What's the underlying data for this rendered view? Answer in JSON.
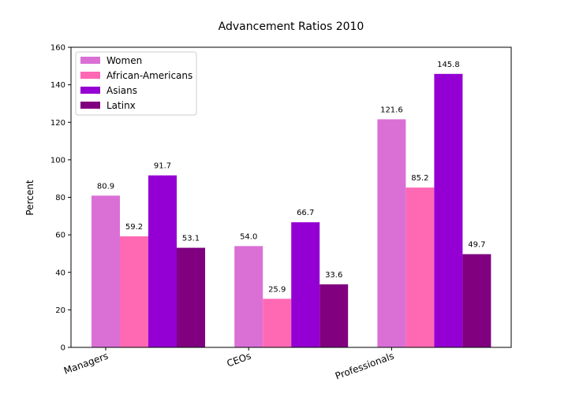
{
  "chart_data": {
    "type": "bar",
    "title": "Advancement Ratios 2010",
    "xlabel": "",
    "ylabel": "Percent",
    "categories": [
      "Managers",
      "CEOs",
      "Professionals"
    ],
    "series": [
      {
        "name": "Women",
        "color": "#da70d6",
        "values": [
          80.9,
          54.0,
          121.6
        ]
      },
      {
        "name": "African-Americans",
        "color": "#ff69b4",
        "values": [
          59.2,
          25.9,
          85.2
        ]
      },
      {
        "name": "Asians",
        "color": "#9400d3",
        "values": [
          91.7,
          66.7,
          145.8
        ]
      },
      {
        "name": "Latinx",
        "color": "#800080",
        "values": [
          53.1,
          33.6,
          49.7
        ]
      }
    ],
    "ylim": [
      0,
      160
    ],
    "yticks": [
      0,
      20,
      40,
      60,
      80,
      100,
      120,
      140,
      160
    ],
    "grid": false,
    "legend_position": "top-left"
  }
}
